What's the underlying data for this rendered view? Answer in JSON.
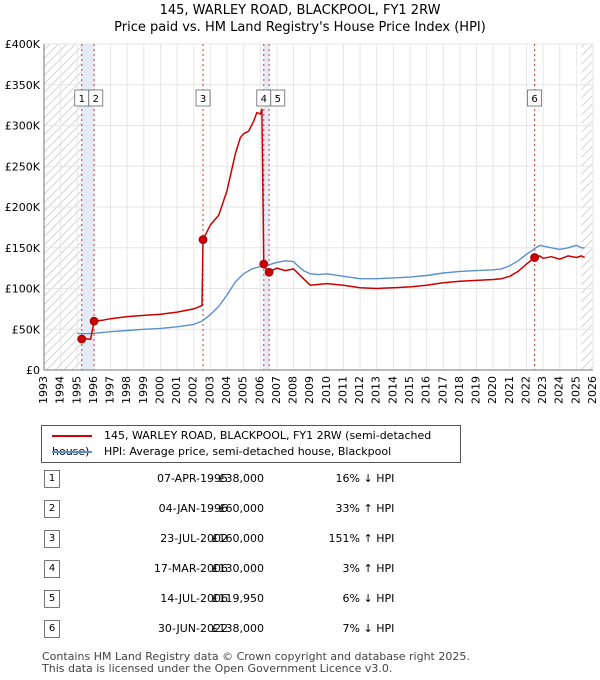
{
  "title_line1": "145, WARLEY ROAD, BLACKPOOL, FY1 2RW",
  "title_line2": "Price paid vs. HM Land Registry's House Price Index (HPI)",
  "colors": {
    "property": "#cc0000",
    "hpi": "#5b8fd0",
    "marker_line": "#cc0000",
    "shade": "#dde6f5",
    "hatch": "#cfcfcf"
  },
  "chart_data": {
    "type": "line",
    "title": "Price paid vs. HM Land Registry's House Price Index (HPI)",
    "xlabel": "",
    "ylabel": "",
    "xlim": [
      1993,
      2026
    ],
    "ylim": [
      0,
      400000
    ],
    "x_ticks": [
      1993,
      1994,
      1995,
      1996,
      1997,
      1998,
      1999,
      2000,
      2001,
      2002,
      2003,
      2004,
      2005,
      2006,
      2007,
      2008,
      2009,
      2010,
      2011,
      2012,
      2013,
      2014,
      2015,
      2016,
      2017,
      2018,
      2019,
      2020,
      2021,
      2022,
      2023,
      2024,
      2025,
      2026
    ],
    "y_ticks": [
      0,
      50000,
      100000,
      150000,
      200000,
      250000,
      300000,
      350000,
      400000
    ],
    "y_tick_labels": [
      "£0",
      "£50K",
      "£100K",
      "£150K",
      "£200K",
      "£250K",
      "£300K",
      "£350K",
      "£400K"
    ],
    "hatched_ranges": [
      [
        1993,
        1995.27
      ],
      [
        2025.3,
        2026
      ]
    ],
    "series": [
      {
        "name": "145, WARLEY ROAD, BLACKPOOL, FY1 2RW (semi-detached house)",
        "x": [
          1995.27,
          1995.5,
          1995.8,
          1996.01,
          1996.5,
          1997,
          1998,
          1999,
          2000,
          2001,
          2002,
          2002.5,
          2002.56,
          2003,
          2003.5,
          2004,
          2004.5,
          2004.8,
          2005,
          2005.3,
          2005.6,
          2005.8,
          2006,
          2006.1,
          2006.2,
          2006.21,
          2006.3,
          2006.53,
          2006.7,
          2007,
          2007.5,
          2008,
          2008.3,
          2008.6,
          2009,
          2009.5,
          2010,
          2011,
          2012,
          2013,
          2014,
          2015,
          2016,
          2017,
          2018,
          2019,
          2020,
          2020.5,
          2021,
          2021.5,
          2022,
          2022.49,
          2022.8,
          2023,
          2023.5,
          2024,
          2024.5,
          2025,
          2025.3,
          2025.5
        ],
        "values": [
          38000,
          38500,
          37500,
          60000,
          61000,
          63000,
          65500,
          67000,
          68500,
          71000,
          75000,
          79000,
          160000,
          178000,
          190000,
          220000,
          265000,
          285000,
          290000,
          293000,
          305000,
          316000,
          314000,
          320000,
          145000,
          130000,
          125000,
          119950,
          122000,
          125000,
          122000,
          124000,
          118000,
          112000,
          104000,
          105000,
          106000,
          104000,
          101000,
          100000,
          101000,
          102000,
          104000,
          107000,
          109000,
          110000,
          111000,
          112000,
          115000,
          121000,
          130000,
          138000,
          140000,
          137000,
          139000,
          136000,
          140000,
          138000,
          140000,
          138000
        ]
      },
      {
        "name": "HPI: Average price, semi-detached house, Blackpool",
        "x": [
          1995,
          1995.5,
          1996,
          1997,
          1998,
          1999,
          2000,
          2001,
          2002,
          2002.5,
          2003,
          2003.5,
          2004,
          2004.5,
          2005,
          2005.5,
          2006,
          2006.5,
          2007,
          2007.5,
          2008,
          2008.3,
          2008.6,
          2009,
          2009.5,
          2010,
          2011,
          2012,
          2013,
          2014,
          2015,
          2016,
          2017,
          2018,
          2019,
          2020,
          2020.5,
          2021,
          2021.5,
          2022,
          2022.5,
          2022.8,
          2023,
          2023.5,
          2024,
          2024.5,
          2025,
          2025.3,
          2025.5
        ],
        "values": [
          45000,
          44500,
          45000,
          47000,
          48500,
          50000,
          51000,
          53000,
          56000,
          60000,
          68000,
          78000,
          92000,
          108000,
          118000,
          124000,
          127000,
          129000,
          132000,
          134000,
          133000,
          127000,
          122000,
          118000,
          117000,
          118000,
          115000,
          112000,
          112000,
          113000,
          114000,
          116000,
          119000,
          121000,
          122000,
          123000,
          124000,
          128000,
          134000,
          142000,
          149000,
          153000,
          152000,
          150000,
          148000,
          150000,
          153000,
          150000,
          150000
        ]
      }
    ],
    "transactions": [
      {
        "num": "1",
        "x": 1995.27,
        "value": 38000
      },
      {
        "num": "2",
        "x": 1996.01,
        "value": 60000
      },
      {
        "num": "3",
        "x": 2002.56,
        "value": 160000
      },
      {
        "num": "4",
        "x": 2006.21,
        "value": 130000
      },
      {
        "num": "5",
        "x": 2006.53,
        "value": 119950
      },
      {
        "num": "6",
        "x": 2022.49,
        "value": 138000
      }
    ]
  },
  "legend": {
    "property": "145, WARLEY ROAD, BLACKPOOL, FY1 2RW (semi-detached house)",
    "hpi": "HPI: Average price, semi-detached house, Blackpool"
  },
  "table": [
    {
      "num": "1",
      "date": "07-APR-1995",
      "price": "£38,000",
      "pct": "16%",
      "arrow": "↓",
      "label": "HPI"
    },
    {
      "num": "2",
      "date": "04-JAN-1996",
      "price": "£60,000",
      "pct": "33%",
      "arrow": "↑",
      "label": "HPI"
    },
    {
      "num": "3",
      "date": "23-JUL-2002",
      "price": "£160,000",
      "pct": "151%",
      "arrow": "↑",
      "label": "HPI"
    },
    {
      "num": "4",
      "date": "17-MAR-2006",
      "price": "£130,000",
      "pct": "3%",
      "arrow": "↑",
      "label": "HPI"
    },
    {
      "num": "5",
      "date": "14-JUL-2006",
      "price": "£119,950",
      "pct": "6%",
      "arrow": "↓",
      "label": "HPI"
    },
    {
      "num": "6",
      "date": "30-JUN-2022",
      "price": "£138,000",
      "pct": "7%",
      "arrow": "↓",
      "label": "HPI"
    }
  ],
  "footer": {
    "line1": "Contains HM Land Registry data © Crown copyright and database right 2025.",
    "line2": "This data is licensed under the Open Government Licence v3.0."
  }
}
